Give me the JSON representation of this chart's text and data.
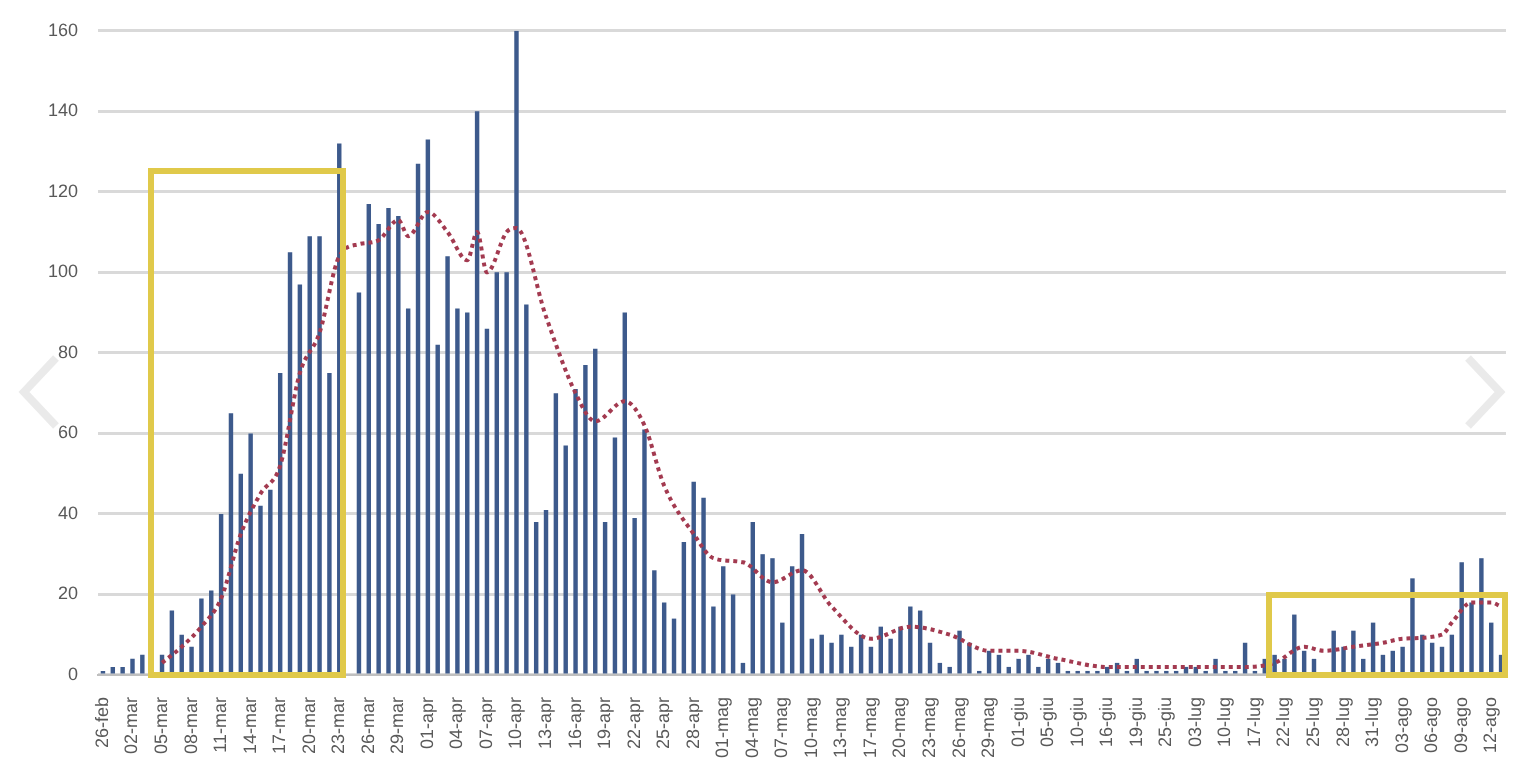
{
  "chart_data": {
    "type": "bar",
    "categories": [
      "26-feb",
      null,
      null,
      "02-mar",
      null,
      null,
      "05-mar",
      null,
      null,
      "08-mar",
      null,
      null,
      "11-mar",
      null,
      null,
      "14-mar",
      null,
      null,
      "17-mar",
      null,
      null,
      "20-mar",
      null,
      null,
      "23-mar",
      null,
      null,
      "26-mar",
      null,
      null,
      "29-mar",
      null,
      null,
      "01-apr",
      null,
      null,
      "04-apr",
      null,
      null,
      "07-apr",
      null,
      null,
      "10-apr",
      null,
      null,
      "13-apr",
      null,
      null,
      "16-apr",
      null,
      null,
      "19-apr",
      null,
      null,
      "22-apr",
      null,
      null,
      "25-apr",
      null,
      null,
      "28-apr",
      null,
      null,
      "01-mag",
      null,
      null,
      "04-mag",
      null,
      null,
      "07-mag",
      null,
      null,
      "10-mag",
      null,
      null,
      "13-mag",
      null,
      null,
      "17-mag",
      null,
      null,
      "20-mag",
      null,
      null,
      "23-mag",
      null,
      null,
      "26-mag",
      null,
      null,
      "29-mag",
      null,
      null,
      "01-giu",
      null,
      null,
      "05-giu",
      null,
      null,
      "10-giu",
      null,
      null,
      "16-giu",
      null,
      null,
      "19-giu",
      null,
      null,
      "25-giu",
      null,
      null,
      "03-lug",
      null,
      null,
      "10-lug",
      null,
      null,
      "17-lug",
      null,
      null,
      "22-lug",
      null,
      null,
      "25-lug",
      null,
      null,
      "28-lug",
      null,
      null,
      "31-lug",
      null,
      null,
      "03-ago",
      null,
      null,
      "06-ago",
      null,
      null,
      "09-ago",
      null,
      null,
      "12-ago",
      null
    ],
    "series": [
      {
        "color": "#3d5a8c",
        "values": [
          1,
          2,
          2,
          4,
          5,
          null,
          5,
          16,
          10,
          7,
          19,
          21,
          40,
          65,
          50,
          60,
          42,
          46,
          75,
          105,
          97,
          109,
          109,
          75,
          132,
          null,
          95,
          117,
          112,
          116,
          114,
          91,
          127,
          133,
          82,
          104,
          91,
          90,
          140,
          86,
          100,
          100,
          160,
          92,
          38,
          41,
          70,
          57,
          71,
          77,
          81,
          38,
          59,
          90,
          39,
          61,
          26,
          18,
          14,
          33,
          48,
          44,
          17,
          27,
          20,
          3,
          38,
          30,
          29,
          13,
          27,
          35,
          9,
          10,
          8,
          10,
          7,
          10,
          7,
          12,
          9,
          12,
          17,
          16,
          8,
          3,
          2,
          11,
          8,
          1,
          6,
          5,
          2,
          4,
          5,
          2,
          4,
          3,
          1,
          1,
          1,
          1,
          2,
          3,
          1,
          4,
          1,
          1,
          1,
          1,
          2,
          2,
          1,
          4,
          1,
          1,
          8,
          1,
          4,
          5,
          4,
          15,
          6,
          4,
          null,
          11,
          7,
          11,
          4,
          13,
          5,
          6,
          7,
          24,
          10,
          8,
          7,
          10,
          28,
          18,
          29,
          13,
          5
        ]
      },
      {
        "type": "line",
        "color": "#a33a50",
        "line_style": "dotted",
        "marker": "none",
        "values": [
          null,
          null,
          null,
          null,
          null,
          null,
          3,
          null,
          7,
          null,
          12,
          null,
          19,
          null,
          35,
          null,
          45,
          null,
          52,
          null,
          75,
          null,
          85,
          null,
          104,
          null,
          107,
          null,
          108,
          null,
          113,
          109,
          null,
          115,
          null,
          110,
          null,
          103,
          110,
          100,
          null,
          110,
          111,
          null,
          null,
          89,
          null,
          null,
          70,
          null,
          63,
          null,
          null,
          68,
          null,
          62,
          null,
          47,
          null,
          null,
          35,
          null,
          29,
          null,
          null,
          28,
          null,
          null,
          23,
          null,
          null,
          26,
          null,
          null,
          17,
          null,
          null,
          null,
          9,
          null,
          null,
          null,
          12,
          null,
          null,
          null,
          10,
          null,
          null,
          null,
          6,
          null,
          null,
          6,
          null,
          null,
          null,
          4,
          null,
          null,
          null,
          null,
          2,
          null,
          null,
          null,
          null,
          null,
          null,
          2,
          null,
          null,
          null,
          null,
          null,
          null,
          2,
          null,
          null,
          3,
          null,
          null,
          7,
          null,
          6,
          null,
          null,
          7,
          null,
          null,
          8,
          null,
          9,
          null,
          null,
          null,
          10,
          13,
          null,
          18,
          null,
          18,
          17
        ]
      }
    ],
    "ylim": [
      0,
      160
    ],
    "yticks": [
      0,
      20,
      40,
      60,
      80,
      100,
      120,
      140,
      160
    ],
    "grid": "y",
    "legend": false
  }
}
